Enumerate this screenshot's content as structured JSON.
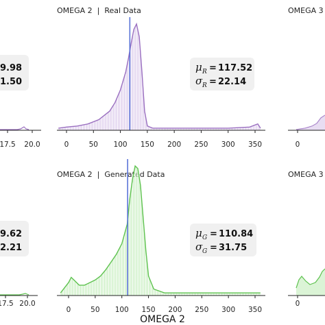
{
  "chart_data": [
    {
      "type": "area",
      "panel": "left-top (cropped)",
      "stats_values": [
        "9.98",
        "1.50"
      ],
      "x_ticks": [
        "17.5",
        "20.0"
      ],
      "colors": {
        "line": "#9a6fc0",
        "fill": "#d9c7ea"
      }
    },
    {
      "type": "area",
      "title": "OMEGA 2  |  Real Data",
      "x_ticks": [
        "0",
        "50",
        "100",
        "150",
        "200",
        "250",
        "300",
        "350"
      ],
      "xlim": [
        -20,
        365
      ],
      "x": [
        -15,
        0,
        20,
        40,
        60,
        80,
        90,
        100,
        110,
        115,
        120,
        125,
        130,
        135,
        140,
        145,
        150,
        160,
        180,
        200,
        250,
        300,
        340,
        355,
        360
      ],
      "y": [
        0.02,
        0.03,
        0.04,
        0.06,
        0.1,
        0.18,
        0.26,
        0.38,
        0.55,
        0.68,
        0.82,
        0.95,
        1.0,
        0.88,
        0.55,
        0.18,
        0.04,
        0.02,
        0.02,
        0.02,
        0.02,
        0.02,
        0.03,
        0.06,
        0.02
      ],
      "mean_line": 117.52,
      "stats": {
        "mu_symbol": "μ",
        "mu_sub": "R",
        "mu_value": "117.52",
        "sigma_symbol": "σ",
        "sigma_sub": "R",
        "sigma_value": "22.14"
      },
      "colors": {
        "line": "#9a6fc0",
        "fill": "#d9c7ea",
        "mean": "#5a73d8"
      }
    },
    {
      "type": "area",
      "panel": "right-top (cropped)",
      "title": "OMEGA 3",
      "x_ticks": [
        "0"
      ],
      "colors": {
        "line": "#9a6fc0",
        "fill": "#d9c7ea"
      }
    },
    {
      "type": "area",
      "panel": "left-bottom (cropped)",
      "stats_values": [
        "9.62",
        "2.21"
      ],
      "x_ticks": [
        "17.5",
        "20.0"
      ],
      "colors": {
        "line": "#5ec24f",
        "fill": "#c3ecbb"
      }
    },
    {
      "type": "area",
      "title": "OMEGA 2  |  Generated Data",
      "x_ticks": [
        "0",
        "50",
        "100",
        "150",
        "200",
        "250",
        "300",
        "350"
      ],
      "xlim": [
        -20,
        365
      ],
      "x": [
        -15,
        0,
        5,
        10,
        20,
        30,
        40,
        50,
        60,
        70,
        80,
        90,
        100,
        110,
        115,
        120,
        125,
        130,
        135,
        140,
        145,
        150,
        160,
        180,
        200,
        250,
        300,
        350,
        360
      ],
      "y": [
        0.02,
        0.1,
        0.14,
        0.12,
        0.08,
        0.08,
        0.1,
        0.12,
        0.15,
        0.2,
        0.26,
        0.32,
        0.4,
        0.55,
        0.75,
        0.9,
        1.0,
        0.98,
        0.85,
        0.6,
        0.35,
        0.15,
        0.05,
        0.02,
        0.02,
        0.02,
        0.02,
        0.02,
        0.02
      ],
      "mean_line": 110.84,
      "stats": {
        "mu_symbol": "μ",
        "mu_sub": "G",
        "mu_value": "110.84",
        "sigma_symbol": "σ",
        "sigma_sub": "G",
        "sigma_value": "31.75"
      },
      "colors": {
        "line": "#5ec24f",
        "fill": "#c3ecbb",
        "mean": "#5a73d8"
      }
    },
    {
      "type": "area",
      "panel": "right-bottom (cropped)",
      "title": "OMEGA 3",
      "x_ticks": [
        "0"
      ],
      "colors": {
        "line": "#5ec24f",
        "fill": "#c3ecbb"
      }
    }
  ],
  "figure": {
    "xlabel": "OMEGA 2"
  }
}
